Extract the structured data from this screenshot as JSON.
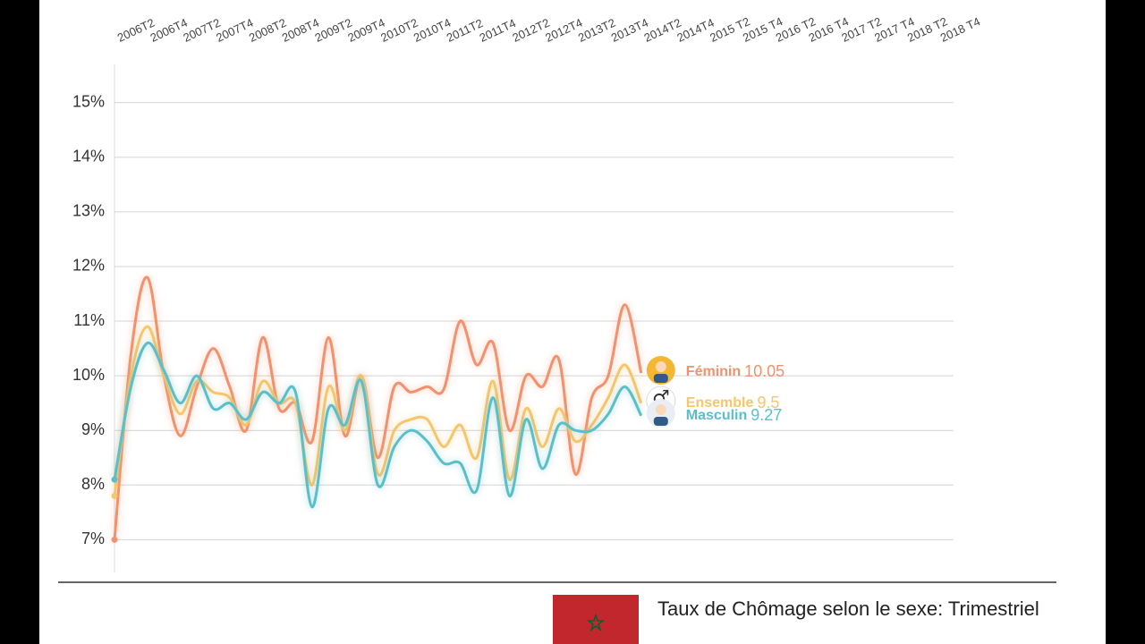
{
  "chart_data": {
    "type": "line",
    "title": "Taux de Chômage selon le sexe: Trimestriel",
    "categories": [
      null,
      "2006T2",
      null,
      "2006T4",
      null,
      "2007T2",
      null,
      "2007T4",
      null,
      "2008T2",
      null,
      "2008T4",
      null,
      "2009T2",
      null,
      "2009T4",
      null,
      "2010T2",
      null,
      "2010T4",
      null,
      "2011T2",
      null,
      "2011T4",
      null,
      "2012T2",
      null,
      "2012T4",
      null,
      "2013T2",
      null,
      "2013T4",
      null,
      "2014T2",
      null,
      "2014T4",
      null,
      "2015 T2",
      null,
      "2015 T4",
      null,
      "2016 T2",
      null,
      "2016 T4",
      null,
      "2017 T2",
      null,
      "2017 T4",
      null,
      "2018 T2",
      null,
      "2018 T4"
    ],
    "series": [
      {
        "name": "Féminin",
        "color": "#f4906b",
        "value_labels": {
          "32": "10.05"
        },
        "values": [
          7.0,
          10.4,
          11.8,
          10.0,
          8.9,
          9.8,
          10.5,
          9.8,
          9.0,
          10.7,
          9.4,
          9.5,
          8.8,
          10.7,
          8.9,
          10.0,
          8.5,
          9.8,
          9.7,
          9.8,
          9.75,
          11.0,
          10.2,
          10.6,
          9.0,
          10.0,
          9.8,
          10.3,
          8.2,
          9.6,
          10.0,
          11.3,
          10.05,
          null,
          null,
          null,
          null,
          null,
          null,
          null,
          null,
          null,
          null,
          null,
          null,
          null,
          null,
          null,
          null,
          null,
          null,
          null
        ]
      },
      {
        "name": "Ensemble",
        "color": "#f7c56b",
        "value_labels": {
          "32": "9.5"
        },
        "values": [
          7.8,
          10.0,
          10.9,
          10.0,
          9.3,
          9.9,
          9.7,
          9.6,
          9.1,
          9.9,
          9.5,
          9.5,
          8.0,
          9.8,
          9.0,
          10.0,
          8.2,
          9.0,
          9.2,
          9.2,
          8.7,
          9.1,
          8.5,
          9.9,
          8.1,
          9.4,
          8.7,
          9.4,
          8.8,
          9.1,
          9.6,
          10.2,
          9.5,
          null,
          null,
          null,
          null,
          null,
          null,
          null,
          null,
          null,
          null,
          null,
          null,
          null,
          null,
          null,
          null,
          null,
          null,
          null
        ]
      },
      {
        "name": "Masculin",
        "color": "#5bbfca",
        "value_labels": {
          "32": "9.27"
        },
        "values": [
          8.1,
          9.8,
          10.6,
          10.1,
          9.5,
          10.0,
          9.4,
          9.5,
          9.2,
          9.7,
          9.5,
          9.7,
          7.6,
          9.4,
          9.1,
          9.9,
          8.0,
          8.7,
          9.0,
          8.8,
          8.4,
          8.4,
          7.9,
          9.6,
          7.8,
          9.2,
          8.3,
          9.1,
          9.0,
          9.0,
          9.3,
          9.8,
          9.27,
          null,
          null,
          null,
          null,
          null,
          null,
          null,
          null,
          null,
          null,
          null,
          null,
          null,
          null,
          null,
          null,
          null,
          null,
          null
        ]
      }
    ],
    "ylim": [
      6.4,
      15.7
    ],
    "yticks": [
      {
        "value": 7,
        "label": "7%"
      },
      {
        "value": 8,
        "label": "8%"
      },
      {
        "value": 9,
        "label": "9%"
      },
      {
        "value": 10,
        "label": "10%"
      },
      {
        "value": 11,
        "label": "11%"
      },
      {
        "value": 12,
        "label": "12%"
      },
      {
        "value": 13,
        "label": "13%"
      },
      {
        "value": 14,
        "label": "14%"
      },
      {
        "value": 15,
        "label": "15%"
      }
    ],
    "grid": true
  }
}
